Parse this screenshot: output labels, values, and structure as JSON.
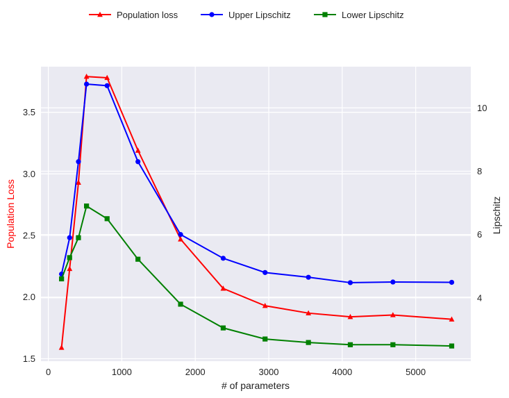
{
  "chart_data": {
    "type": "line",
    "xlabel": "# of parameters",
    "ylabel_left": "Population Loss",
    "ylabel_right": "Lipschitz",
    "xlim": [
      -100,
      5750
    ],
    "ylim_left": [
      1.48,
      3.87
    ],
    "ylim_right": [
      2.0,
      11.3
    ],
    "x_ticks": [
      0,
      1000,
      2000,
      3000,
      4000,
      5000
    ],
    "y_left_ticks": [
      1.5,
      2.0,
      2.5,
      3.0,
      3.5
    ],
    "y_right_ticks": [
      4,
      6,
      8,
      10
    ],
    "grid": true,
    "legend_position": "top-center",
    "x": [
      180,
      290,
      410,
      520,
      800,
      1220,
      1800,
      2380,
      2950,
      3540,
      4110,
      4690,
      5490
    ],
    "series": [
      {
        "name": "Population loss",
        "axis": "left",
        "color": "#ff0000",
        "marker": "triangle",
        "values": [
          1.59,
          2.23,
          2.93,
          3.79,
          3.78,
          3.19,
          2.47,
          2.07,
          1.93,
          1.87,
          1.84,
          1.855,
          1.82
        ]
      },
      {
        "name": "Upper Lipschitz",
        "axis": "right",
        "color": "#0000ff",
        "marker": "circle",
        "values": [
          4.75,
          5.9,
          8.3,
          10.75,
          10.7,
          8.3,
          6.0,
          5.25,
          4.8,
          4.65,
          4.48,
          4.5,
          4.49
        ]
      },
      {
        "name": "Lower Lipschitz",
        "axis": "right",
        "color": "#008000",
        "marker": "square",
        "values": [
          4.6,
          5.27,
          5.9,
          6.9,
          6.5,
          5.22,
          3.8,
          3.05,
          2.7,
          2.59,
          2.52,
          2.52,
          2.48
        ]
      }
    ]
  }
}
